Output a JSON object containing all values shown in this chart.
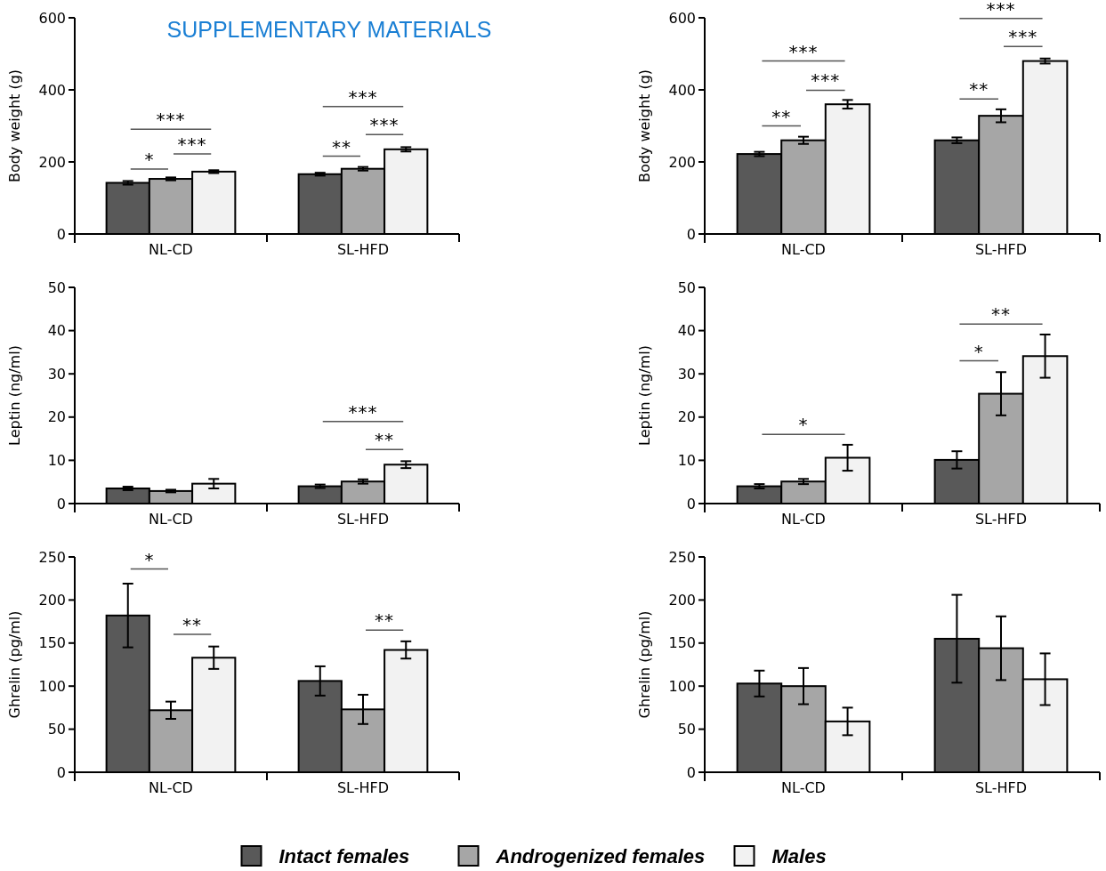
{
  "chart_data": [
    {
      "type": "bar",
      "title": "SUPPLEMENTARY MATERIALS",
      "ylabel": "Body weight (g)",
      "categories": [
        "NL-CD",
        "SL-HFD"
      ],
      "ylim": [
        0,
        600
      ],
      "yticks": [
        0,
        200,
        400,
        600
      ],
      "legend": "bottom",
      "grid": false,
      "series": [
        {
          "name": "Intact females",
          "color": "#595959",
          "values": [
            142,
            166
          ],
          "errors": [
            5,
            4
          ]
        },
        {
          "name": "Androgenized females",
          "color": "#a6a6a6",
          "values": [
            153,
            181
          ],
          "errors": [
            4,
            5
          ]
        },
        {
          "name": "Males",
          "color": "#f2f2f2",
          "values": [
            173,
            235
          ],
          "errors": [
            4,
            6
          ]
        }
      ],
      "annotations": [
        "*",
        "***",
        "***",
        "**",
        "***",
        "***"
      ]
    },
    {
      "type": "bar",
      "ylabel": "Body weight (g)",
      "categories": [
        "NL-CD",
        "SL-HFD"
      ],
      "ylim": [
        0,
        600
      ],
      "yticks": [
        0,
        200,
        400,
        600
      ],
      "grid": false,
      "series": [
        {
          "color": "#595959",
          "values": [
            222,
            260
          ],
          "errors": [
            6,
            8
          ]
        },
        {
          "color": "#a6a6a6",
          "values": [
            260,
            328
          ],
          "errors": [
            10,
            18
          ]
        },
        {
          "color": "#f2f2f2",
          "values": [
            360,
            480
          ],
          "errors": [
            12,
            7
          ]
        }
      ],
      "annotations": [
        "**",
        "***",
        "***",
        "**",
        "***",
        "***"
      ]
    },
    {
      "type": "bar",
      "ylabel": "Leptin (ng/ml)",
      "categories": [
        "NL-CD",
        "SL-HFD"
      ],
      "ylim": [
        0,
        50
      ],
      "yticks": [
        0,
        10,
        20,
        30,
        40,
        50
      ],
      "grid": false,
      "series": [
        {
          "color": "#595959",
          "values": [
            3.5,
            4.0
          ],
          "errors": [
            0.4,
            0.4
          ]
        },
        {
          "color": "#a6a6a6",
          "values": [
            2.9,
            5.1
          ],
          "errors": [
            0.3,
            0.5
          ]
        },
        {
          "color": "#f2f2f2",
          "values": [
            4.6,
            9.0
          ],
          "errors": [
            1.1,
            0.8
          ]
        }
      ],
      "annotations": [
        "***",
        "**"
      ]
    },
    {
      "type": "bar",
      "ylabel": "Leptin (ng/ml)",
      "categories": [
        "NL-CD",
        "SL-HFD"
      ],
      "ylim": [
        0,
        50
      ],
      "yticks": [
        0,
        10,
        20,
        30,
        40,
        50
      ],
      "grid": false,
      "series": [
        {
          "color": "#595959",
          "values": [
            4.0,
            10.1
          ],
          "errors": [
            0.5,
            2
          ]
        },
        {
          "color": "#a6a6a6",
          "values": [
            5.1,
            25.4
          ],
          "errors": [
            0.6,
            5
          ]
        },
        {
          "color": "#f2f2f2",
          "values": [
            10.6,
            34.1
          ],
          "errors": [
            3,
            5
          ]
        }
      ],
      "annotations": [
        "*",
        "*",
        "**"
      ]
    },
    {
      "type": "bar",
      "ylabel": "Ghrelin (pg/ml)",
      "categories": [
        "NL-CD",
        "SL-HFD"
      ],
      "ylim": [
        0,
        250
      ],
      "yticks": [
        0,
        50,
        100,
        150,
        200,
        250
      ],
      "grid": false,
      "series": [
        {
          "color": "#595959",
          "values": [
            182,
            106
          ],
          "errors": [
            37,
            17
          ]
        },
        {
          "color": "#a6a6a6",
          "values": [
            72,
            73
          ],
          "errors": [
            10,
            17
          ]
        },
        {
          "color": "#f2f2f2",
          "values": [
            133,
            142
          ],
          "errors": [
            13,
            10
          ]
        }
      ],
      "annotations": [
        "*",
        "**",
        "**"
      ]
    },
    {
      "type": "bar",
      "ylabel": "Ghrelin (pg/ml)",
      "categories": [
        "NL-CD",
        "SL-HFD"
      ],
      "ylim": [
        0,
        250
      ],
      "yticks": [
        0,
        50,
        100,
        150,
        200,
        250
      ],
      "grid": false,
      "series": [
        {
          "color": "#595959",
          "values": [
            103,
            155
          ],
          "errors": [
            15,
            51
          ]
        },
        {
          "color": "#a6a6a6",
          "values": [
            100,
            144
          ],
          "errors": [
            21,
            37
          ]
        },
        {
          "color": "#f2f2f2",
          "values": [
            59,
            108
          ],
          "errors": [
            16,
            30
          ]
        }
      ]
    }
  ]
}
